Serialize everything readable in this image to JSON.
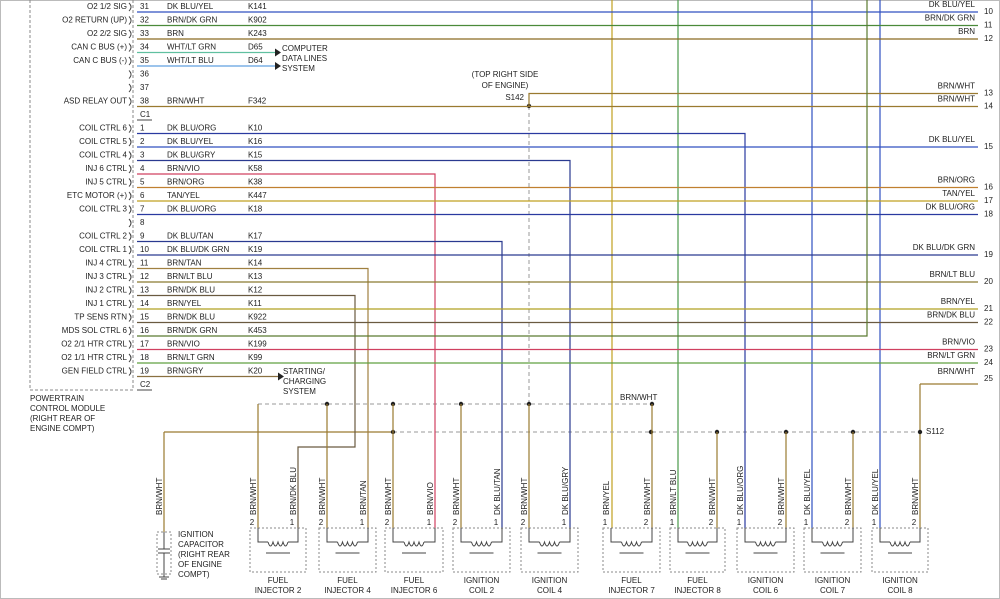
{
  "pcm": {
    "title": [
      "POWERTRAIN",
      "CONTROL MODULE",
      "(RIGHT REAR OF",
      "ENGINE COMPT)"
    ],
    "rows": [
      {
        "name": "O2 1/2 SIG",
        "pin": "31",
        "wire": "DK BLU/YEL",
        "circuit": "K141",
        "color": "#3050c0",
        "to": [
          {
            "label": "DK BLU/YEL",
            "num": "10"
          }
        ]
      },
      {
        "name": "O2 RETURN (UP)",
        "pin": "32",
        "wire": "BRN/DK GRN",
        "circuit": "K902",
        "color": "#4a8a3a",
        "to": [
          {
            "label": "BRN/DK GRN",
            "num": "11"
          }
        ]
      },
      {
        "name": "O2 2/2 SIG",
        "pin": "33",
        "wire": "BRN",
        "circuit": "K243",
        "color": "#8a6a20",
        "to": [
          {
            "label": "BRN",
            "num": "12"
          }
        ]
      },
      {
        "name": "CAN C BUS (+)",
        "pin": "34",
        "wire": "WHT/LT GRN",
        "circuit": "D65",
        "color": "#60c0a0"
      },
      {
        "name": "CAN C BUS (-)",
        "pin": "35",
        "wire": "WHT/LT BLU",
        "circuit": "D64",
        "color": "#60a0e0"
      },
      {
        "pin": "36"
      },
      {
        "pin": "37"
      },
      {
        "name": "ASD RELAY OUT",
        "pin": "38",
        "wire": "BRN/WHT",
        "circuit": "F342",
        "color": "#9a7a30",
        "to": [
          {
            "label": "BRN/WHT",
            "num": "13"
          },
          {
            "label": "BRN/WHT",
            "num": "14"
          }
        ]
      },
      {
        "connector": "C1"
      },
      {
        "name": "COIL CTRL 6",
        "pin": "1",
        "wire": "DK BLU/ORG",
        "circuit": "K10",
        "color": "#2a3aa0"
      },
      {
        "name": "COIL CTRL 5",
        "pin": "2",
        "wire": "DK BLU/YEL",
        "circuit": "K16",
        "color": "#3050c0",
        "to": [
          {
            "label": "DK BLU/YEL",
            "num": "15"
          }
        ]
      },
      {
        "name": "COIL CTRL 4",
        "pin": "3",
        "wire": "DK BLU/GRY",
        "circuit": "K15",
        "color": "#2a3a90"
      },
      {
        "name": "INJ 6 CTRL",
        "pin": "4",
        "wire": "BRN/VIO",
        "circuit": "K58",
        "color": "#d04060"
      },
      {
        "name": "INJ 5 CTRL",
        "pin": "5",
        "wire": "BRN/ORG",
        "circuit": "K38",
        "color": "#c08030",
        "to": [
          {
            "label": "BRN/ORG",
            "num": "16"
          }
        ]
      },
      {
        "name": "ETC MOTOR (+)",
        "pin": "6",
        "wire": "TAN/YEL",
        "circuit": "K447",
        "color": "#c0a020",
        "to": [
          {
            "label": "TAN/YEL",
            "num": "17"
          }
        ]
      },
      {
        "name": "COIL CTRL 3",
        "pin": "7",
        "wire": "DK BLU/ORG",
        "circuit": "K18",
        "color": "#2a3aa0",
        "to": [
          {
            "label": "DK BLU/ORG",
            "num": "18"
          }
        ]
      },
      {
        "pin": "8"
      },
      {
        "name": "COIL CTRL 2",
        "pin": "9",
        "wire": "DK BLU/TAN",
        "circuit": "K17",
        "color": "#2a3a90"
      },
      {
        "name": "COIL CTRL 1",
        "pin": "10",
        "wire": "DK BLU/DK GRN",
        "circuit": "K19",
        "color": "#2a3a90",
        "to": [
          {
            "label": "DK BLU/DK GRN",
            "num": "19"
          }
        ]
      },
      {
        "name": "INJ 4 CTRL",
        "pin": "11",
        "wire": "BRN/TAN",
        "circuit": "K14",
        "color": "#a08040"
      },
      {
        "name": "INJ 3 CTRL",
        "pin": "12",
        "wire": "BRN/LT BLU",
        "circuit": "K13",
        "color": "#8a7a30",
        "to": [
          {
            "label": "BRN/LT BLU",
            "num": "20"
          }
        ]
      },
      {
        "name": "INJ 2 CTRL",
        "pin": "13",
        "wire": "BRN/DK BLU",
        "circuit": "K12",
        "color": "#6a5a40"
      },
      {
        "name": "INJ 1 CTRL",
        "pin": "14",
        "wire": "BRN/YEL",
        "circuit": "K11",
        "color": "#b0a020",
        "to": [
          {
            "label": "BRN/YEL",
            "num": "21"
          }
        ]
      },
      {
        "name": "TP SENS RTN",
        "pin": "15",
        "wire": "BRN/DK BLU",
        "circuit": "K922",
        "color": "#6a5a40",
        "to": [
          {
            "label": "BRN/DK BLU",
            "num": "22"
          }
        ]
      },
      {
        "name": "MDS SOL CTRL 6",
        "pin": "16",
        "wire": "BRN/DK GRN",
        "circuit": "K453",
        "color": "#5a7a30"
      },
      {
        "name": "O2 2/1 HTR CTRL",
        "pin": "17",
        "wire": "BRN/VIO",
        "circuit": "K199",
        "color": "#d04060",
        "to": [
          {
            "label": "BRN/VIO",
            "num": "23"
          }
        ]
      },
      {
        "name": "O2 1/1 HTR CTRL",
        "pin": "18",
        "wire": "BRN/LT GRN",
        "circuit": "K99",
        "color": "#60a040",
        "to": [
          {
            "label": "BRN/LT GRN",
            "num": "24"
          }
        ]
      },
      {
        "name": "GEN FIELD CTRL",
        "pin": "19",
        "wire": "BRN/GRY",
        "circuit": "K20",
        "color": "#8a7040"
      },
      {
        "connector": "C2"
      }
    ]
  },
  "data_lines": [
    "COMPUTER",
    "DATA LINES",
    "SYSTEM"
  ],
  "charging": [
    "STARTING/",
    "CHARGING",
    "SYSTEM"
  ],
  "s142": {
    "location": [
      "(TOP RIGHT SIDE",
      "OF ENGINE)"
    ],
    "name": "S142",
    "wire": "BRN/WHT"
  },
  "s112": {
    "name": "S112",
    "wire": "BRN/WHT",
    "num": "25"
  },
  "capacitor": {
    "wire": "BRN/WHT",
    "lines": [
      "IGNITION",
      "CAPACITOR",
      "(RIGHT REAR",
      "OF ENGINE",
      "COMPT)"
    ]
  },
  "components": [
    {
      "lines": [
        "FUEL",
        "INJECTOR 2"
      ],
      "pins": [
        {
          "num": "2",
          "wire": "BRN/WHT"
        },
        {
          "num": "1",
          "wire": "BRN/DK BLU"
        }
      ]
    },
    {
      "lines": [
        "FUEL",
        "INJECTOR 4"
      ],
      "pins": [
        {
          "num": "2",
          "wire": "BRN/WHT"
        },
        {
          "num": "1",
          "wire": "BRN/TAN"
        }
      ]
    },
    {
      "lines": [
        "FUEL",
        "INJECTOR 6"
      ],
      "pins": [
        {
          "num": "2",
          "wire": "BRN/WHT"
        },
        {
          "num": "1",
          "wire": "BRN/VIO"
        }
      ]
    },
    {
      "lines": [
        "IGNITION",
        "COIL 2"
      ],
      "pins": [
        {
          "num": "2",
          "wire": "BRN/WHT"
        },
        {
          "num": "1",
          "wire": "DK BLU/TAN"
        }
      ]
    },
    {
      "lines": [
        "IGNITION",
        "COIL 4"
      ],
      "pins": [
        {
          "num": "2",
          "wire": "BRN/WHT"
        },
        {
          "num": "1",
          "wire": "DK BLU/GRY"
        }
      ]
    },
    {
      "lines": [
        "FUEL",
        "INJECTOR 7"
      ],
      "pins": [
        {
          "num": "1",
          "wire": "BRN/YEL"
        },
        {
          "num": "2",
          "wire": "BRN/WHT"
        }
      ]
    },
    {
      "lines": [
        "FUEL",
        "INJECTOR 8"
      ],
      "pins": [
        {
          "num": "1",
          "wire": "BRN/LT BLU"
        },
        {
          "num": "2",
          "wire": "BRN/WHT"
        }
      ]
    },
    {
      "lines": [
        "IGNITION",
        "COIL 6"
      ],
      "pins": [
        {
          "num": "1",
          "wire": "DK BLU/ORG"
        },
        {
          "num": "2",
          "wire": "BRN/WHT"
        }
      ]
    },
    {
      "lines": [
        "IGNITION",
        "COIL 7"
      ],
      "pins": [
        {
          "num": "1",
          "wire": "DK BLU/YEL"
        },
        {
          "num": "2",
          "wire": "BRN/WHT"
        }
      ]
    },
    {
      "lines": [
        "IGNITION",
        "COIL 8"
      ],
      "pins": [
        {
          "num": "1",
          "wire": "DK BLU/YEL"
        },
        {
          "num": "2",
          "wire": "BRN/WHT"
        }
      ]
    }
  ]
}
